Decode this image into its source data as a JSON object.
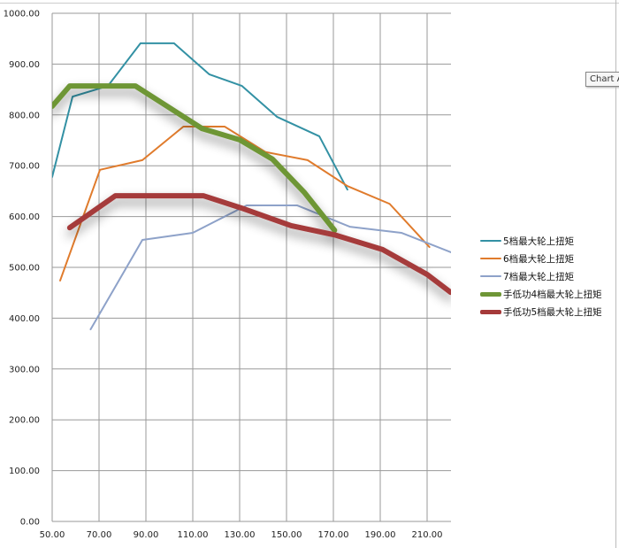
{
  "tooltip": "Chart A",
  "colors": {
    "s5": "#3391a4",
    "s6": "#e07b2c",
    "s7": "#8ea2c9",
    "low4": "#6e9636",
    "low5": "#a53a3a",
    "grid": "#999999"
  },
  "chart_data": {
    "type": "line",
    "title": "",
    "xlabel": "",
    "ylabel": "",
    "xlim": [
      50,
      220
    ],
    "ylim": [
      0,
      1000
    ],
    "grid": true,
    "legend_position": "right",
    "x_ticks": [
      "50.00",
      "70.00",
      "90.00",
      "110.00",
      "130.00",
      "150.00",
      "170.00",
      "190.00",
      "210.00"
    ],
    "y_ticks": [
      "0.00",
      "100.00",
      "200.00",
      "300.00",
      "400.00",
      "500.00",
      "600.00",
      "700.00",
      "800.00",
      "900.00",
      "1000.00"
    ],
    "series": [
      {
        "name": "5档最大轮上扭矩",
        "color_key": "s5",
        "width": 2,
        "x": [
          50,
          58.7,
          73.8,
          87.7,
          102,
          117,
          131,
          146,
          164,
          176
        ],
        "y": [
          678,
          836,
          857,
          941,
          941,
          880,
          857,
          796,
          758,
          653
        ]
      },
      {
        "name": "6档最大轮上扭矩",
        "color_key": "s6",
        "width": 2,
        "x": [
          53.4,
          70.4,
          88.5,
          106,
          123.6,
          141,
          159,
          176,
          194,
          211
        ],
        "y": [
          474,
          692,
          711,
          777,
          777,
          727,
          711,
          660,
          625,
          540
        ]
      },
      {
        "name": "7档最大轮上扭矩",
        "color_key": "s7",
        "width": 2,
        "x": [
          66.4,
          88.5,
          110,
          133,
          154.5,
          177,
          199,
          220
        ],
        "y": [
          378,
          554,
          568,
          622,
          622,
          580,
          568,
          530
        ]
      },
      {
        "name": "手低功4档最大轮上扭矩",
        "color_key": "low4",
        "width": 6,
        "x": [
          50,
          57.5,
          85.5,
          114,
          130,
          144,
          157.5,
          170.5
        ],
        "y": [
          817,
          857,
          857,
          773,
          751,
          713,
          648,
          573
        ]
      },
      {
        "name": "手低功5档最大轮上扭矩",
        "color_key": "low5",
        "width": 6,
        "x": [
          57.5,
          77,
          114.5,
          130.6,
          152,
          170.5,
          191,
          210,
          220
        ],
        "y": [
          578,
          641,
          641,
          617,
          582,
          564,
          535,
          486,
          451
        ]
      }
    ]
  }
}
